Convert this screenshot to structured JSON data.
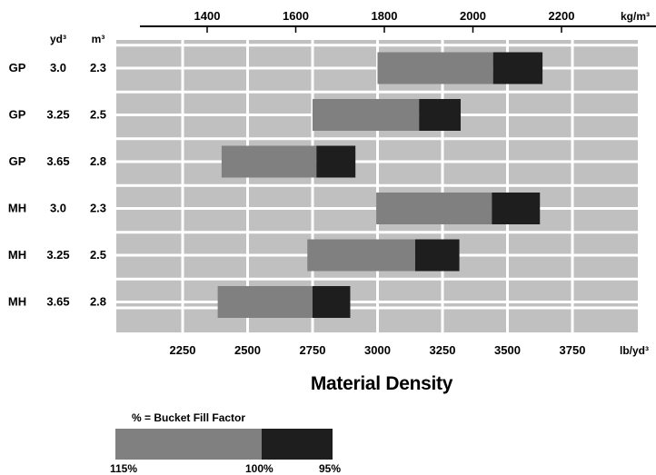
{
  "chart_data": {
    "type": "bar",
    "orientation": "horizontal-range",
    "title": "Material Density",
    "top_axis": {
      "unit": "kg/m³",
      "ticks": [
        1400,
        1600,
        1800,
        2000,
        2200
      ]
    },
    "bottom_axis": {
      "unit": "lb/yd³",
      "range": [
        2050,
        3950
      ],
      "ticks": [
        2250,
        2500,
        2750,
        3000,
        3250,
        3500,
        3750
      ]
    },
    "column_headers": {
      "yd3": "yd³",
      "m3": "m³"
    },
    "rows": [
      {
        "type": "GP",
        "yd3": "3.0",
        "m3": "2.3",
        "start": 3000,
        "mid": 3445,
        "end": 3635
      },
      {
        "type": "GP",
        "yd3": "3.25",
        "m3": "2.5",
        "start": 2750,
        "mid": 3160,
        "end": 3320
      },
      {
        "type": "GP",
        "yd3": "3.65",
        "m3": "2.8",
        "start": 2400,
        "mid": 2765,
        "end": 2915
      },
      {
        "type": "MH",
        "yd3": "3.0",
        "m3": "2.3",
        "start": 2995,
        "mid": 3440,
        "end": 3625
      },
      {
        "type": "MH",
        "yd3": "3.25",
        "m3": "2.5",
        "start": 2730,
        "mid": 3145,
        "end": 3315
      },
      {
        "type": "MH",
        "yd3": "3.65",
        "m3": "2.8",
        "start": 2385,
        "mid": 2750,
        "end": 2895
      }
    ],
    "grid": true,
    "colors": {
      "plot_bg": "#c0c0c0",
      "grid": "#ffffff",
      "bar_mid": "#808080",
      "bar_high": "#1e1e1e"
    }
  },
  "legend": {
    "title": "% = Bucket Fill Factor",
    "labels": [
      "115%",
      "100%",
      "95%"
    ]
  }
}
